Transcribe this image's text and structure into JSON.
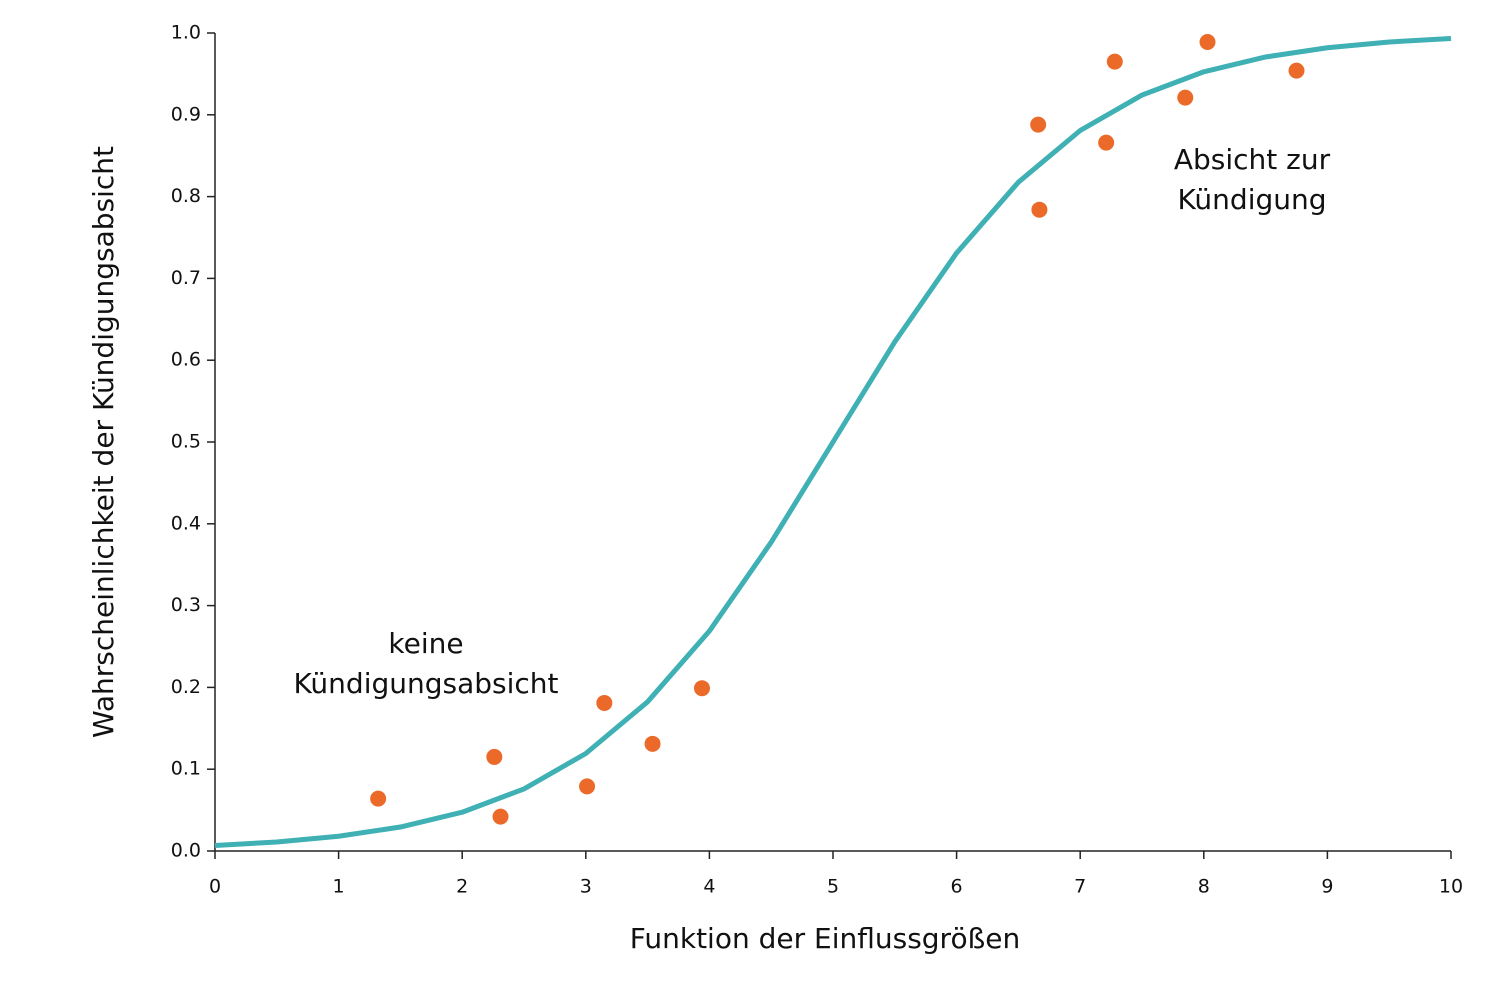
{
  "chart_data": {
    "type": "scatter",
    "x_label": "Funktion der Einflussgrößen",
    "y_label": "Wahrscheinlichkeit der Kündigungsabsicht",
    "annotations": [
      [
        "keine",
        "Kündigungsabsicht"
      ],
      [
        "Absicht zur",
        "Kündigung"
      ]
    ],
    "xlim": [
      0,
      10
    ],
    "ylim": [
      0,
      1
    ],
    "xticks": [
      0,
      1,
      2,
      3,
      4,
      5,
      6,
      7,
      8,
      9,
      10
    ],
    "yticks": [
      {
        "value": 0,
        "label": "0.0"
      },
      0.1,
      0.2,
      0.3,
      0.4,
      0.5,
      0.6,
      0.7,
      0.8,
      0.9,
      {
        "value": 1,
        "label": "1.0"
      }
    ],
    "grid": false,
    "series": [
      {
        "style": "line",
        "color": "#3fb0b4",
        "x": [
          0,
          0.5,
          1,
          1.5,
          2,
          2.5,
          3,
          3.5,
          4,
          4.5,
          5,
          5.5,
          6,
          6.5,
          7,
          7.5,
          8,
          8.5,
          9,
          9.5,
          10
        ],
        "values": [
          0.0067,
          0.011,
          0.018,
          0.0293,
          0.0474,
          0.0759,
          0.1192,
          0.1824,
          0.2689,
          0.3775,
          0.5,
          0.6225,
          0.7311,
          0.8176,
          0.8808,
          0.9241,
          0.9526,
          0.9707,
          0.982,
          0.989,
          0.9933
        ]
      },
      {
        "style": "points",
        "color": "#eb6a2a",
        "x": [
          1.32,
          2.26,
          2.31,
          3.01,
          3.15,
          3.54,
          3.94,
          6.66,
          6.67,
          7.21,
          7.28,
          7.85,
          8.03,
          8.75
        ],
        "values": [
          0.064,
          0.115,
          0.042,
          0.079,
          0.181,
          0.131,
          0.199,
          0.888,
          0.784,
          0.866,
          0.965,
          0.921,
          0.989,
          0.954
        ]
      }
    ]
  }
}
